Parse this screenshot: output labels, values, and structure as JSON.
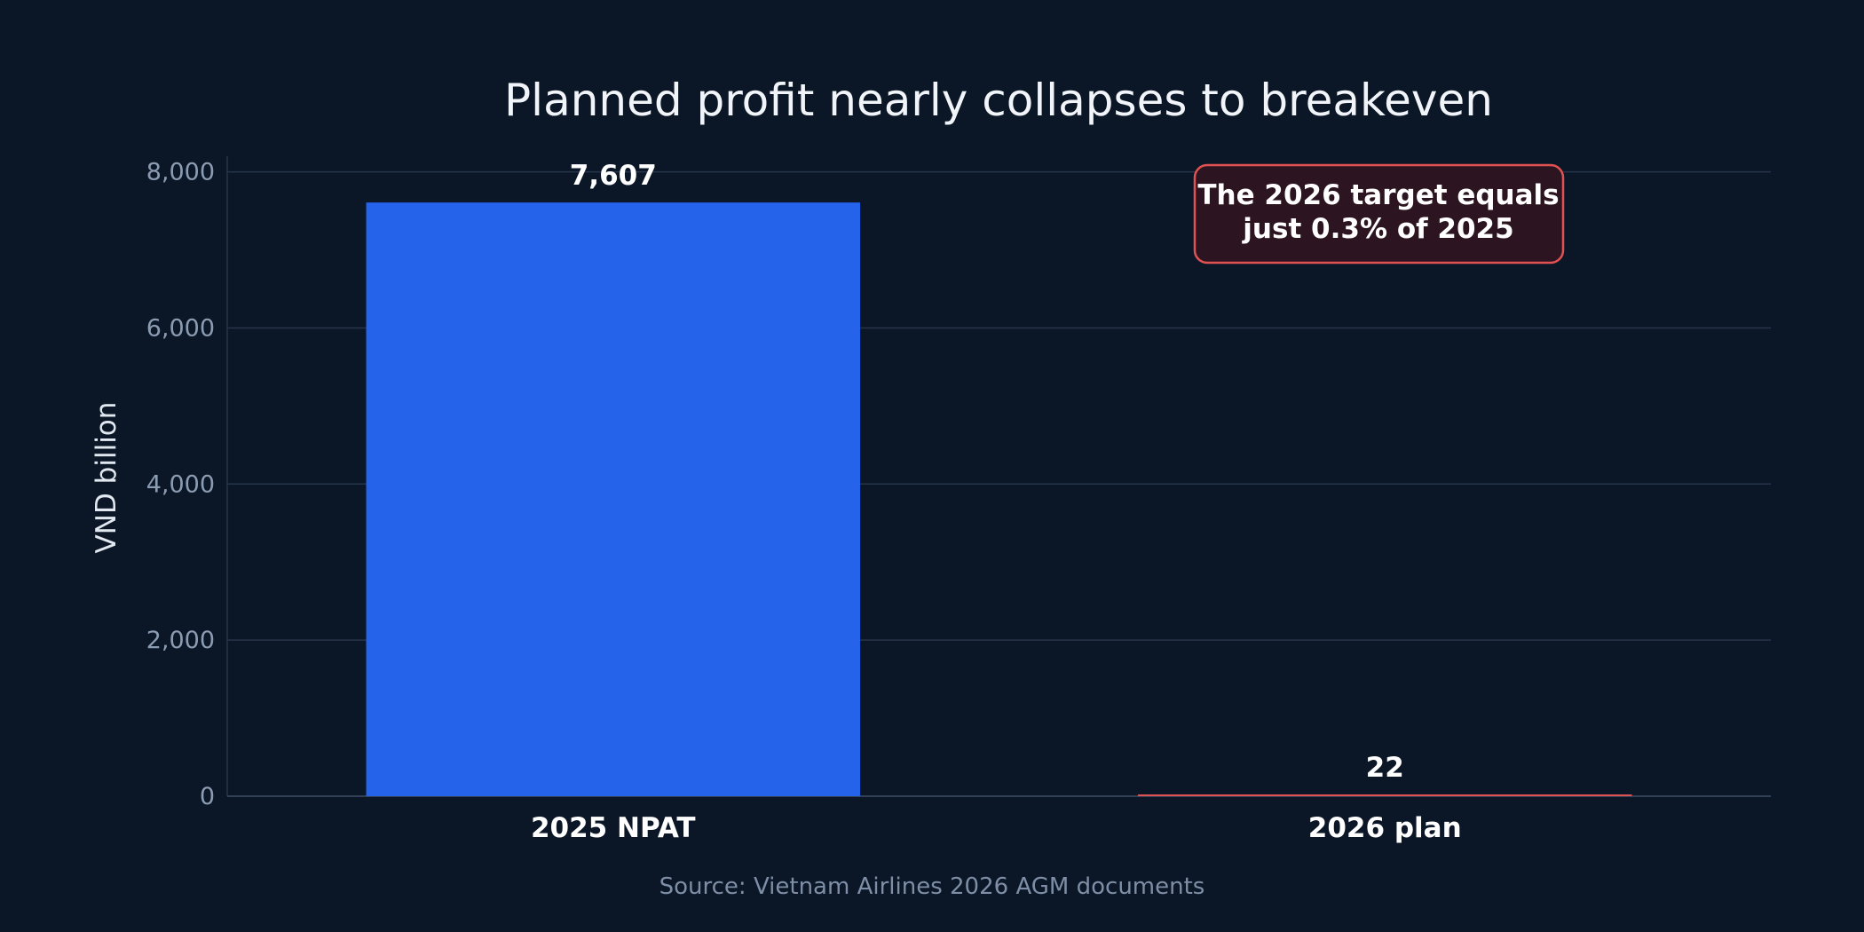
{
  "chart_data": {
    "type": "bar",
    "title": "Planned profit nearly collapses to breakeven",
    "xlabel": "",
    "ylabel": "VND billion",
    "categories": [
      "2025 NPAT",
      "2026 plan"
    ],
    "values": [
      7607,
      22
    ],
    "value_labels": [
      "7,607",
      "22"
    ],
    "bar_colors": [
      "#2563eb",
      "#e05252"
    ],
    "ylim": [
      0,
      8200
    ],
    "yticks": [
      0,
      2000,
      4000,
      6000,
      8000
    ],
    "ytick_labels": [
      "0",
      "2,000",
      "4,000",
      "6,000",
      "8,000"
    ],
    "grid": true,
    "annotation": {
      "lines": [
        "The 2026 target equals",
        "just 0.3% of 2025"
      ],
      "border_color": "#e05252"
    },
    "source": "Source: Vietnam Airlines 2026 AGM documents"
  },
  "colors": {
    "background": "#0b1727",
    "grid": "#27354a",
    "tick_text": "#8b9bb2"
  }
}
